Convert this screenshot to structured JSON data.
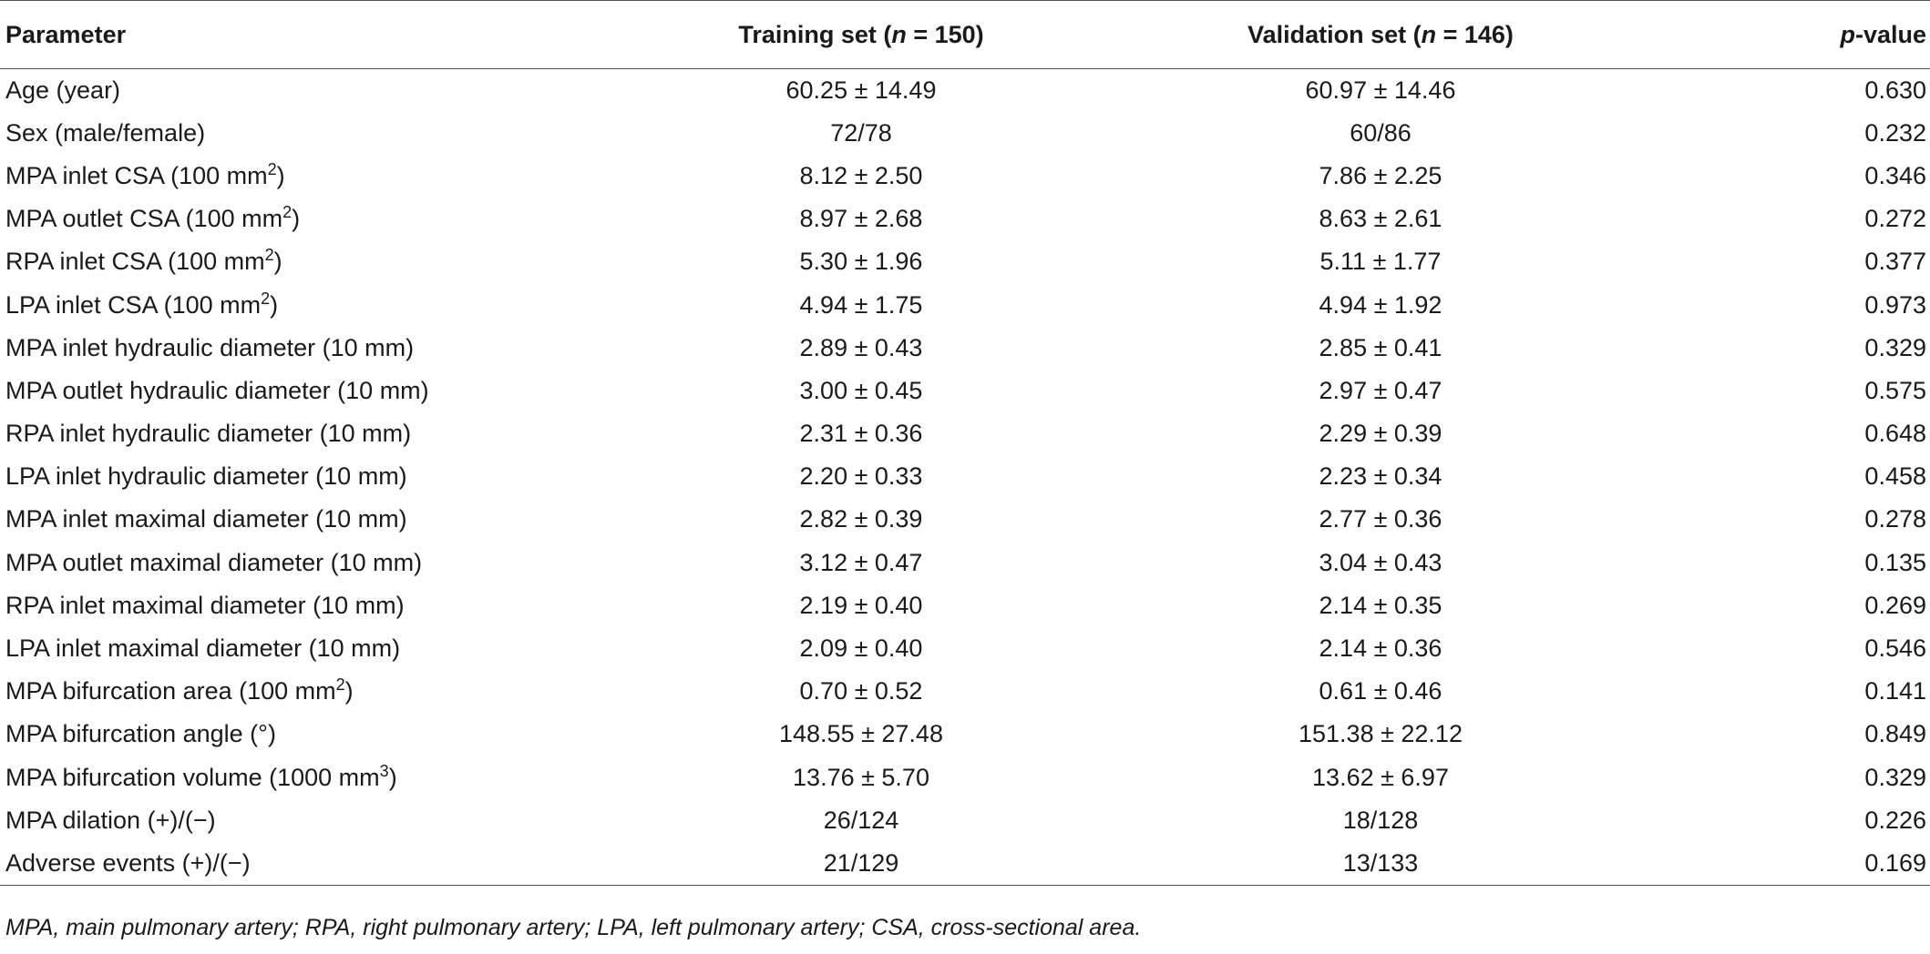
{
  "table": {
    "headers": {
      "parameter": "Parameter",
      "training_prefix": "Training set (",
      "training_n": "n",
      "training_suffix": " = 150)",
      "validation_prefix": "Validation set (",
      "validation_n": "n",
      "validation_suffix": " = 146)",
      "p_italic": "p",
      "p_suffix": "-value"
    },
    "rows": [
      {
        "param": "Age (year)",
        "sup": "",
        "unit_close": "",
        "training": "60.25 ± 14.49",
        "validation": "60.97 ± 14.46",
        "p": "0.630"
      },
      {
        "param": "Sex (male/female)",
        "sup": "",
        "unit_close": "",
        "training": "72/78",
        "validation": "60/86",
        "p": "0.232"
      },
      {
        "param": "MPA inlet CSA (100 mm",
        "sup": "2",
        "unit_close": ")",
        "training": "8.12 ± 2.50",
        "validation": "7.86 ± 2.25",
        "p": "0.346"
      },
      {
        "param": "MPA outlet CSA (100 mm",
        "sup": "2",
        "unit_close": ")",
        "training": "8.97 ± 2.68",
        "validation": "8.63 ± 2.61",
        "p": "0.272"
      },
      {
        "param": "RPA inlet CSA (100 mm",
        "sup": "2",
        "unit_close": ")",
        "training": "5.30 ± 1.96",
        "validation": "5.11 ± 1.77",
        "p": "0.377"
      },
      {
        "param": "LPA inlet CSA (100 mm",
        "sup": "2",
        "unit_close": ")",
        "training": "4.94 ± 1.75",
        "validation": "4.94 ± 1.92",
        "p": "0.973"
      },
      {
        "param": "MPA inlet hydraulic diameter (10 mm)",
        "sup": "",
        "unit_close": "",
        "training": "2.89 ± 0.43",
        "validation": "2.85 ± 0.41",
        "p": "0.329"
      },
      {
        "param": "MPA outlet hydraulic diameter (10 mm)",
        "sup": "",
        "unit_close": "",
        "training": "3.00 ± 0.45",
        "validation": "2.97 ± 0.47",
        "p": "0.575"
      },
      {
        "param": "RPA inlet hydraulic diameter (10 mm)",
        "sup": "",
        "unit_close": "",
        "training": "2.31 ± 0.36",
        "validation": "2.29 ± 0.39",
        "p": "0.648"
      },
      {
        "param": "LPA inlet hydraulic diameter (10 mm)",
        "sup": "",
        "unit_close": "",
        "training": "2.20 ± 0.33",
        "validation": "2.23 ± 0.34",
        "p": "0.458"
      },
      {
        "param": "MPA inlet maximal diameter (10 mm)",
        "sup": "",
        "unit_close": "",
        "training": "2.82 ± 0.39",
        "validation": "2.77 ± 0.36",
        "p": "0.278"
      },
      {
        "param": "MPA outlet maximal diameter (10 mm)",
        "sup": "",
        "unit_close": "",
        "training": "3.12 ± 0.47",
        "validation": "3.04 ± 0.43",
        "p": "0.135"
      },
      {
        "param": "RPA inlet maximal diameter (10 mm)",
        "sup": "",
        "unit_close": "",
        "training": "2.19 ± 0.40",
        "validation": "2.14 ± 0.35",
        "p": "0.269"
      },
      {
        "param": "LPA inlet maximal diameter (10 mm)",
        "sup": "",
        "unit_close": "",
        "training": "2.09 ± 0.40",
        "validation": "2.14 ± 0.36",
        "p": "0.546"
      },
      {
        "param": "MPA bifurcation area (100 mm",
        "sup": "2",
        "unit_close": ")",
        "training": "0.70 ± 0.52",
        "validation": "0.61 ± 0.46",
        "p": "0.141"
      },
      {
        "param": "MPA bifurcation angle (°)",
        "sup": "",
        "unit_close": "",
        "training": "148.55 ± 27.48",
        "validation": "151.38 ± 22.12",
        "p": "0.849"
      },
      {
        "param": "MPA bifurcation volume (1000 mm",
        "sup": "3",
        "unit_close": ")",
        "training": "13.76 ± 5.70",
        "validation": "13.62 ± 6.97",
        "p": "0.329"
      },
      {
        "param": "MPA dilation (+)/(−)",
        "sup": "",
        "unit_close": "",
        "training": "26/124",
        "validation": "18/128",
        "p": "0.226"
      },
      {
        "param": "Adverse events (+)/(−)",
        "sup": "",
        "unit_close": "",
        "training": "21/129",
        "validation": "13/133",
        "p": "0.169"
      }
    ]
  },
  "footnote": "MPA, main pulmonary artery; RPA, right pulmonary artery; LPA, left pulmonary artery; CSA, cross-sectional area."
}
